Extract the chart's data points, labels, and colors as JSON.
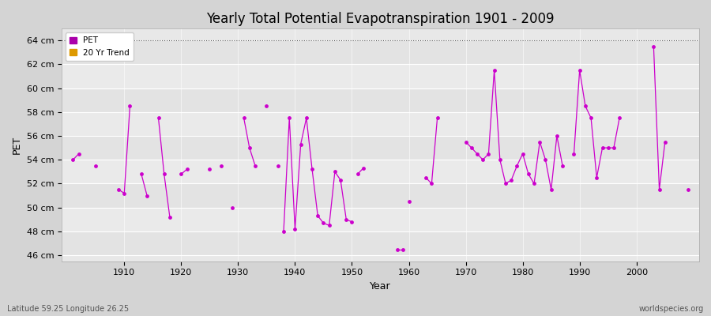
{
  "title": "Yearly Total Potential Evapotranspiration 1901 - 2009",
  "ylabel": "PET",
  "xlabel": "Year",
  "subtitle_left": "Latitude 59.25 Longitude 26.25",
  "watermark": "worldspecies.org",
  "pet_color": "#cc00cc",
  "trend_color": "#dd9900",
  "bg_color": "#e0e0e0",
  "plot_bg": "#e8e8e8",
  "segments": [
    [
      1901,
      54.0
    ],
    [
      1902,
      54.5
    ],
    [
      null,
      null
    ],
    [
      1905,
      53.5
    ],
    [
      null,
      null
    ],
    [
      1909,
      51.5
    ],
    [
      1910,
      51.2
    ],
    [
      1911,
      58.5
    ],
    [
      null,
      null
    ],
    [
      1913,
      52.8
    ],
    [
      1914,
      51.0
    ],
    [
      null,
      null
    ],
    [
      1916,
      57.5
    ],
    [
      1917,
      52.8
    ],
    [
      1918,
      49.2
    ],
    [
      null,
      null
    ],
    [
      1920,
      52.8
    ],
    [
      1921,
      53.2
    ],
    [
      null,
      null
    ],
    [
      1925,
      53.2
    ],
    [
      null,
      null
    ],
    [
      1927,
      53.5
    ],
    [
      null,
      null
    ],
    [
      1929,
      50.0
    ],
    [
      null,
      null
    ],
    [
      1931,
      57.5
    ],
    [
      1932,
      55.0
    ],
    [
      1933,
      53.5
    ],
    [
      null,
      null
    ],
    [
      1935,
      58.5
    ],
    [
      null,
      null
    ],
    [
      1937,
      53.5
    ],
    [
      null,
      null
    ],
    [
      1938,
      48.0
    ],
    [
      1939,
      57.5
    ],
    [
      1940,
      48.2
    ],
    [
      1941,
      55.3
    ],
    [
      1942,
      57.5
    ],
    [
      1943,
      53.2
    ],
    [
      1944,
      49.3
    ],
    [
      1945,
      48.7
    ],
    [
      1946,
      48.5
    ],
    [
      1947,
      53.0
    ],
    [
      1948,
      52.3
    ],
    [
      1949,
      49.0
    ],
    [
      1950,
      48.8
    ],
    [
      null,
      null
    ],
    [
      1951,
      52.8
    ],
    [
      1952,
      53.3
    ],
    [
      null,
      null
    ],
    [
      1958,
      46.5
    ],
    [
      1959,
      46.5
    ],
    [
      null,
      null
    ],
    [
      1960,
      50.5
    ],
    [
      null,
      null
    ],
    [
      1963,
      52.5
    ],
    [
      1964,
      52.0
    ],
    [
      1965,
      57.5
    ],
    [
      null,
      null
    ],
    [
      1970,
      55.5
    ],
    [
      1971,
      55.0
    ],
    [
      1972,
      54.5
    ],
    [
      1973,
      54.0
    ],
    [
      1974,
      54.5
    ],
    [
      1975,
      61.5
    ],
    [
      1976,
      54.0
    ],
    [
      1977,
      52.0
    ],
    [
      1978,
      52.3
    ],
    [
      1979,
      53.5
    ],
    [
      1980,
      54.5
    ],
    [
      1981,
      52.8
    ],
    [
      1982,
      52.0
    ],
    [
      1983,
      55.5
    ],
    [
      1984,
      54.0
    ],
    [
      1985,
      51.5
    ],
    [
      1986,
      56.0
    ],
    [
      1987,
      53.5
    ],
    [
      null,
      null
    ],
    [
      1989,
      54.5
    ],
    [
      1990,
      61.5
    ],
    [
      1991,
      58.5
    ],
    [
      1992,
      57.5
    ],
    [
      1993,
      52.5
    ],
    [
      1994,
      55.0
    ],
    [
      1995,
      55.0
    ],
    [
      1996,
      55.0
    ],
    [
      1997,
      57.5
    ],
    [
      null,
      null
    ],
    [
      2003,
      63.5
    ],
    [
      2004,
      51.5
    ],
    [
      2005,
      55.5
    ],
    [
      null,
      null
    ],
    [
      2009,
      51.5
    ]
  ],
  "yticks": [
    46,
    48,
    50,
    52,
    54,
    56,
    58,
    60,
    62,
    64
  ],
  "ytick_labels": [
    "46 cm",
    "48 cm",
    "50 cm",
    "52 cm",
    "54 cm",
    "56 cm",
    "58 cm",
    "60 cm",
    "62 cm",
    "64 cm"
  ],
  "xticks": [
    1910,
    1920,
    1930,
    1940,
    1950,
    1960,
    1970,
    1980,
    1990,
    2000
  ],
  "xlim": [
    1899,
    2011
  ],
  "ylim": [
    45.5,
    65.0
  ]
}
